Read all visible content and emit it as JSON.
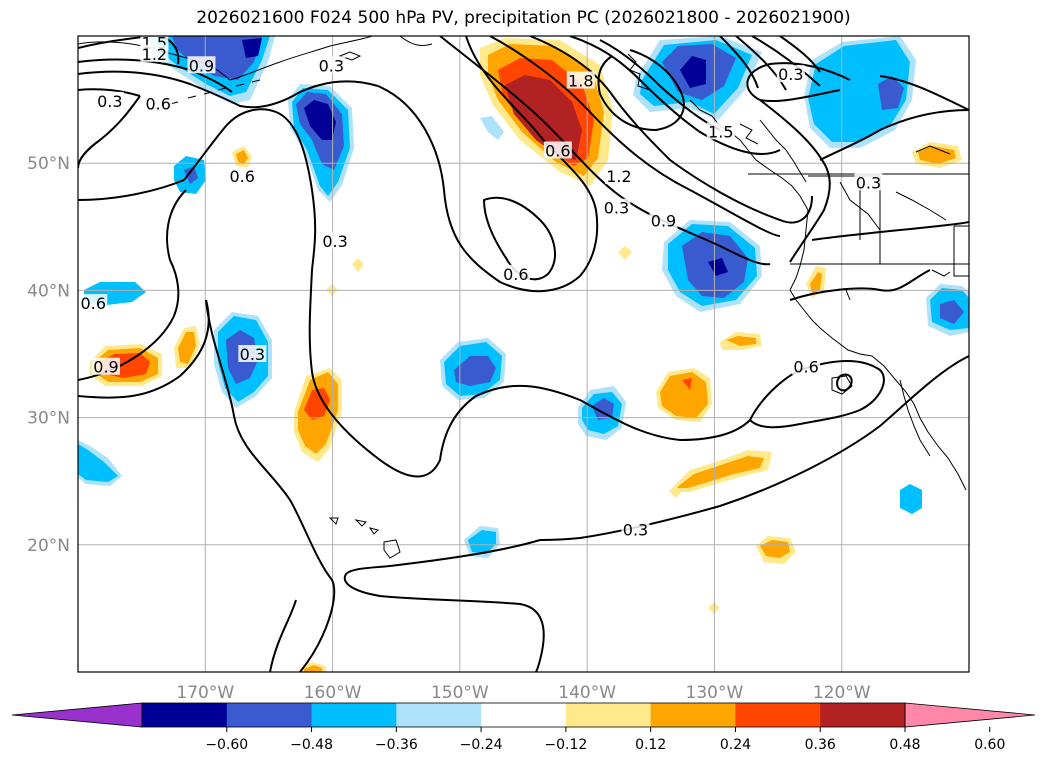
{
  "chart_data": {
    "type": "contour_map",
    "title": "2026021600 F024 500 hPa PV, precipitation PC (2026021800 - 2026021900)",
    "projection": "equirectangular",
    "lon_range": [
      -180,
      -110
    ],
    "lat_range": [
      10,
      60
    ],
    "lon_ticks": [
      {
        "value": -170,
        "label": "170°W"
      },
      {
        "value": -160,
        "label": "160°W"
      },
      {
        "value": -150,
        "label": "150°W"
      },
      {
        "value": -140,
        "label": "140°W"
      },
      {
        "value": -130,
        "label": "130°W"
      },
      {
        "value": -120,
        "label": "120°W"
      }
    ],
    "lat_ticks": [
      {
        "value": 20,
        "label": "20°N"
      },
      {
        "value": 30,
        "label": "30°N"
      },
      {
        "value": 40,
        "label": "40°N"
      },
      {
        "value": 50,
        "label": "50°N"
      }
    ],
    "pv_contour_levels": [
      0.3,
      0.6,
      0.9,
      1.2,
      1.5,
      1.8
    ],
    "contour_labels": [
      {
        "text": "1.5",
        "lon": -174,
        "lat": 59.5
      },
      {
        "text": "1.2",
        "lon": -174,
        "lat": 58.6
      },
      {
        "text": "0.9",
        "lon": -170.3,
        "lat": 57.7
      },
      {
        "text": "0.3",
        "lon": -160.1,
        "lat": 57.7
      },
      {
        "text": "0.3",
        "lon": -177.5,
        "lat": 54.9
      },
      {
        "text": "0.6",
        "lon": -173.7,
        "lat": 54.7
      },
      {
        "text": "0.6",
        "lon": -167.1,
        "lat": 49.0
      },
      {
        "text": "0.3",
        "lon": -159.8,
        "lat": 43.9
      },
      {
        "text": "0.6",
        "lon": -178.8,
        "lat": 39.0
      },
      {
        "text": "0.9",
        "lon": -177.8,
        "lat": 34.0
      },
      {
        "text": "0.3",
        "lon": -166.3,
        "lat": 35.0
      },
      {
        "text": "1.8",
        "lon": -140.5,
        "lat": 56.5
      },
      {
        "text": "0.6",
        "lon": -142.3,
        "lat": 51.0
      },
      {
        "text": "1.2",
        "lon": -137.5,
        "lat": 49.0
      },
      {
        "text": "1.5",
        "lon": -129.5,
        "lat": 52.5
      },
      {
        "text": "0.3",
        "lon": -137.7,
        "lat": 46.5
      },
      {
        "text": "0.9",
        "lon": -134.0,
        "lat": 45.5
      },
      {
        "text": "0.6",
        "lon": -145.6,
        "lat": 41.3
      },
      {
        "text": "0.3",
        "lon": -124.0,
        "lat": 57.0
      },
      {
        "text": "0.3",
        "lon": -117.9,
        "lat": 48.5
      },
      {
        "text": "0.6",
        "lon": -122.8,
        "lat": 34.0
      },
      {
        "text": "0.3",
        "lon": -136.2,
        "lat": 21.2
      }
    ],
    "precip_pc_colorbar": {
      "ticks": [
        "−0.60",
        "−0.48",
        "−0.36",
        "−0.24",
        "−0.12",
        "0.12",
        "0.24",
        "0.36",
        "0.48",
        "0.60"
      ],
      "bins": [
        {
          "range": "< -0.60",
          "color": "#9932cc"
        },
        {
          "range": "-0.60 to -0.48",
          "color": "#000096"
        },
        {
          "range": "-0.48 to -0.36",
          "color": "#3a5bcf"
        },
        {
          "range": "-0.36 to -0.24",
          "color": "#00bfff"
        },
        {
          "range": "-0.24 to -0.12",
          "color": "#ade2fa"
        },
        {
          "range": "-0.12 to 0.12",
          "color": "#ffffff"
        },
        {
          "range": "0.12 to 0.24",
          "color": "#ffe98b"
        },
        {
          "range": "0.24 to 0.36",
          "color": "#ffa500"
        },
        {
          "range": "0.36 to 0.48",
          "color": "#ff4500"
        },
        {
          "range": "0.48 to 0.60",
          "color": "#b22222"
        },
        {
          "range": "> 0.60",
          "color": "#ff88aa"
        }
      ],
      "extend": "both"
    },
    "precip_pc_features": [
      {
        "lon": -143,
        "lat": 53.5,
        "sign": "positive",
        "peak": 0.55
      },
      {
        "lon": -127,
        "lat": 56,
        "sign": "negative",
        "peak": -0.48
      },
      {
        "lon": -130,
        "lat": 42,
        "sign": "negative",
        "peak": -0.48
      },
      {
        "lon": -160.5,
        "lat": 54,
        "sign": "negative",
        "peak": -0.6
      },
      {
        "lon": -167,
        "lat": 58,
        "sign": "negative",
        "peak": -0.55
      },
      {
        "lon": -115,
        "lat": 55,
        "sign": "negative",
        "peak": -0.36
      },
      {
        "lon": -176,
        "lat": 34,
        "sign": "positive",
        "peak": 0.4
      },
      {
        "lon": -165,
        "lat": 34,
        "sign": "negative",
        "peak": -0.36
      },
      {
        "lon": -160.5,
        "lat": 29.5,
        "sign": "positive",
        "peak": 0.4
      },
      {
        "lon": -148,
        "lat": 34.5,
        "sign": "negative",
        "peak": -0.4
      },
      {
        "lon": -131.5,
        "lat": 32,
        "sign": "positive",
        "peak": 0.36
      },
      {
        "lon": -138,
        "lat": 30.5,
        "sign": "negative",
        "peak": -0.36
      },
      {
        "lon": -111,
        "lat": 38.5,
        "sign": "negative",
        "peak": -0.4
      },
      {
        "lon": -130,
        "lat": 25,
        "sign": "positive",
        "peak": 0.28
      }
    ],
    "colors": {
      "land": "#000000",
      "contour": "#000000",
      "grid": "#b0b0b0",
      "tick_label": "#888888"
    }
  }
}
